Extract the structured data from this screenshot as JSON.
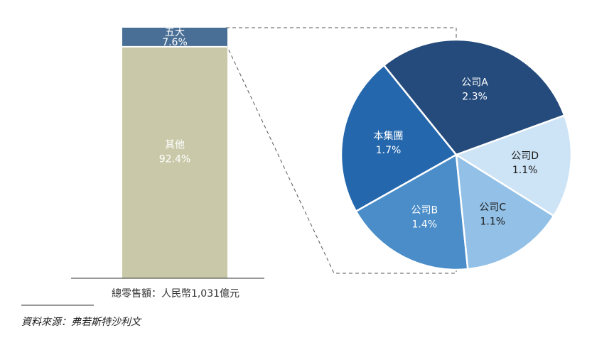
{
  "chart_data": [
    {
      "type": "bar",
      "stacked": true,
      "categories": [
        ""
      ],
      "series": [
        {
          "name": "其他",
          "values": [
            92.4
          ],
          "value_label": "92.4%",
          "color": "#c9c9a9"
        },
        {
          "name": "五大",
          "values": [
            7.6
          ],
          "value_label": "7.6%",
          "color": "#4a6f96"
        }
      ],
      "xlabel": "總零售額：人民幣1,031億元",
      "ylim": [
        0,
        100
      ]
    },
    {
      "type": "pie",
      "categories": [
        "公司A",
        "本集團",
        "公司B",
        "公司C",
        "公司D"
      ],
      "values": [
        2.3,
        1.7,
        1.4,
        1.1,
        1.1
      ],
      "value_labels": [
        "2.3%",
        "1.7%",
        "1.4%",
        "1.1%",
        "1.1%"
      ],
      "colors": [
        "#244b7c",
        "#2467ad",
        "#4a8dc8",
        "#92c0e6",
        "#cde3f6"
      ],
      "label_tone": [
        "on-dark",
        "on-dark",
        "on-dark",
        "on-light",
        "on-light"
      ],
      "connector": "dashed"
    }
  ],
  "footnote": {
    "source": "資料來源：弗若斯特沙利文"
  }
}
